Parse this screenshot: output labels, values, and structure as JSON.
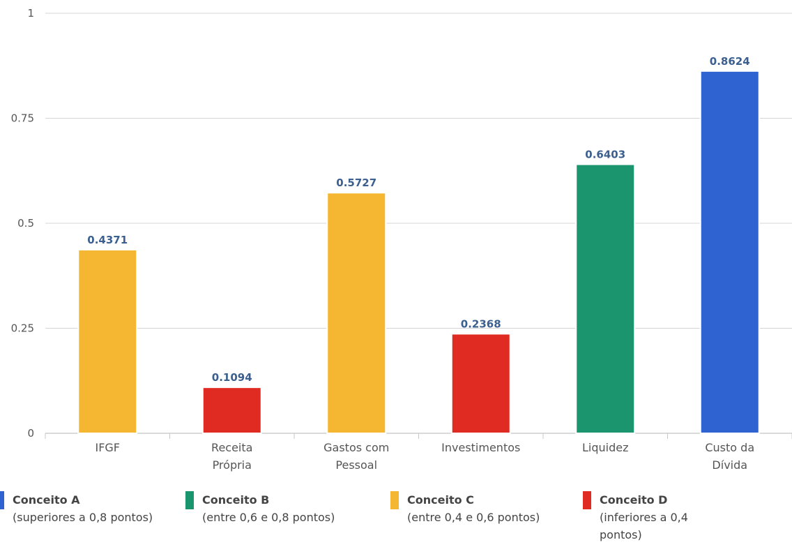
{
  "chart_data": {
    "type": "bar",
    "categories": [
      [
        "IFGF"
      ],
      [
        "Receita",
        "Própria"
      ],
      [
        "Gastos com",
        "Pessoal"
      ],
      [
        "Investimentos"
      ],
      [
        "Liquidez"
      ],
      [
        "Custo da",
        "Dívida"
      ]
    ],
    "values": [
      0.4371,
      0.1094,
      0.5727,
      0.2368,
      0.6403,
      0.8624
    ],
    "value_labels": [
      "0.4371",
      "0.1094",
      "0.5727",
      "0.2368",
      "0.6403",
      "0.8624"
    ],
    "bar_colors": [
      "#f5b731",
      "#df2b22",
      "#f5b731",
      "#df2b22",
      "#1a956e",
      "#2f63d1"
    ],
    "ylim": [
      0,
      1
    ],
    "yticks": [
      0,
      0.25,
      0.5,
      0.75,
      1
    ],
    "ytick_labels": [
      "0",
      "0.25",
      "0.5",
      "0.75",
      "1"
    ],
    "grid": true,
    "title": "",
    "xlabel": "",
    "ylabel": "",
    "legend_position": "bottom"
  },
  "legend": [
    {
      "name": "Conceito A",
      "desc": "(superiores a 0,8 pontos)",
      "color": "#2f63d1"
    },
    {
      "name": "Conceito B",
      "desc": "(entre 0,6 e 0,8 pontos)",
      "color": "#1a956e"
    },
    {
      "name": "Conceito C",
      "desc": "(entre 0,4 e 0,6 pontos)",
      "color": "#f5b731"
    },
    {
      "name": "Conceito D",
      "desc": "(inferiores a 0,4 pontos)",
      "color": "#df2b22"
    }
  ]
}
